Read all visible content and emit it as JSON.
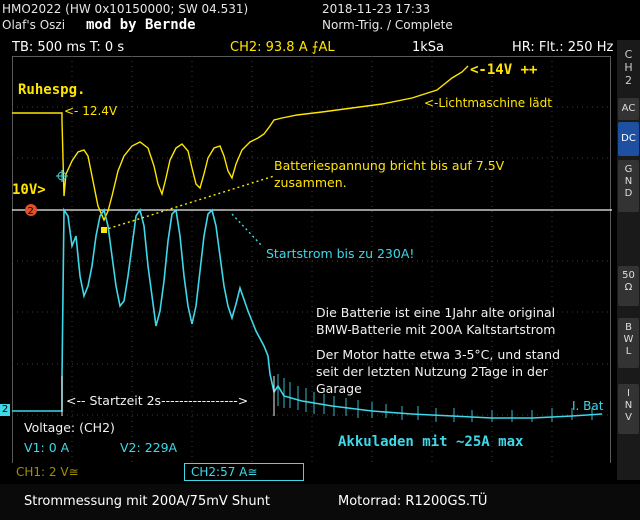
{
  "header": {
    "model": "HMO2022 (HW 0x10150000; SW 04.531)",
    "owner": "Olaf's Oszi",
    "mod": "mod by Bernde",
    "datetime": "2018-11-23 17:33",
    "trigger": "Norm-Trig. / Complete"
  },
  "status_bar": {
    "timebase": "TB: 500 ms  T: 0 s",
    "ch2_value": "CH2: 93.8 A",
    "ch2_suffix": "⨍AL",
    "sample_rate": "1kSa",
    "filter": "HR: Flt.: 250 Hz"
  },
  "sidebar": {
    "ch2_label": "C\nH\n2",
    "buttons": [
      "AC",
      "DC",
      "G\nN\nD",
      "50\nΩ",
      "B\nW\nL",
      "I\nN\nV"
    ],
    "active_button": "DC"
  },
  "annotations": {
    "ruhespg": "Ruhespg.",
    "v_12_4": "<- 12.4V",
    "v_10": "10V>",
    "v_14": "<-14V ++",
    "lichtmaschine": "<-Lichtmaschine lädt",
    "batterie_line1": "Batteriespannung bricht bis auf 7.5V",
    "batterie_line2": "zusammen.",
    "startstrom": "Startstrom bis zu 230A!",
    "info1_line1": "Die Batterie ist eine 1Jahr alte original",
    "info1_line2": "BMW-Batterie mit 200A Kaltstartstrom",
    "info2_line1": "Der Motor hatte etwa 3-5°C, und stand",
    "info2_line2": "seit der letzten Nutzung 2Tage in der",
    "info2_line3": "Garage",
    "startzeit": "<-- Startzeit 2s----------------->",
    "bat": "I. Bat",
    "akkuladen": "Akkuladen mit ~25A max"
  },
  "markers": {
    "ch2_ref": "2",
    "ch2_left": "2"
  },
  "cursor_box": {
    "title": "Voltage: (CH2)",
    "v1": "V1: 0 A",
    "v2": "V2: 229A"
  },
  "channels": {
    "ch1": "CH1: 2 V≅",
    "ch2": "CH2:57 A≅"
  },
  "footer": {
    "left": "Strommessung mit 200A/75mV Shunt",
    "right": "Motorrad: R1200GS.TÜ"
  },
  "colors": {
    "yellow_trace": "#ffe600",
    "cyan_trace": "#3fd8e8",
    "grid": "#5a5a5a",
    "active_button": "#1f4fa0"
  }
}
